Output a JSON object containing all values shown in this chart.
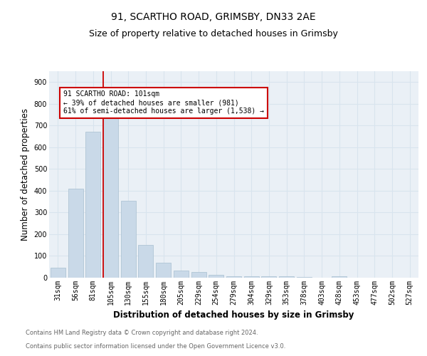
{
  "title1": "91, SCARTHO ROAD, GRIMSBY, DN33 2AE",
  "title2": "Size of property relative to detached houses in Grimsby",
  "xlabel": "Distribution of detached houses by size in Grimsby",
  "ylabel": "Number of detached properties",
  "categories": [
    "31sqm",
    "56sqm",
    "81sqm",
    "105sqm",
    "130sqm",
    "155sqm",
    "180sqm",
    "205sqm",
    "229sqm",
    "254sqm",
    "279sqm",
    "304sqm",
    "329sqm",
    "353sqm",
    "378sqm",
    "403sqm",
    "428sqm",
    "453sqm",
    "477sqm",
    "502sqm",
    "527sqm"
  ],
  "values": [
    47,
    410,
    670,
    748,
    355,
    150,
    68,
    32,
    25,
    14,
    8,
    5,
    5,
    5,
    4,
    0,
    5,
    0,
    0,
    0,
    0
  ],
  "bar_color": "#c9d9e8",
  "bar_edge_color": "#a8bfd0",
  "annotation_lines": [
    "91 SCARTHO ROAD: 101sqm",
    "← 39% of detached houses are smaller (981)",
    "61% of semi-detached houses are larger (1,538) →"
  ],
  "annotation_box_color": "#cc0000",
  "grid_color": "#d8e4ee",
  "background_color": "#eaf0f6",
  "ylim": [
    0,
    950
  ],
  "yticks": [
    0,
    100,
    200,
    300,
    400,
    500,
    600,
    700,
    800,
    900
  ],
  "footer1": "Contains HM Land Registry data © Crown copyright and database right 2024.",
  "footer2": "Contains public sector information licensed under the Open Government Licence v3.0.",
  "title_fontsize": 10,
  "subtitle_fontsize": 9,
  "axis_label_fontsize": 8.5,
  "tick_fontsize": 7,
  "footer_fontsize": 6
}
